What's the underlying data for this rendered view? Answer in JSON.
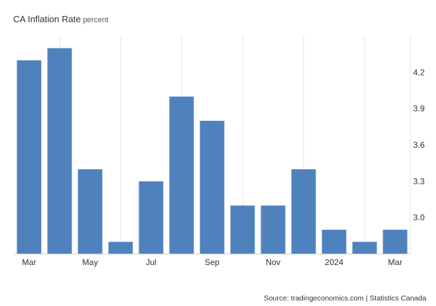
{
  "chart_data": {
    "type": "bar",
    "title": "CA Inflation Rate",
    "unit": "percent",
    "categories": [
      "2023-03",
      "2023-04",
      "2023-05",
      "2023-06",
      "2023-07",
      "2023-08",
      "2023-09",
      "2023-10",
      "2023-11",
      "2023-12",
      "2024-01",
      "2024-02",
      "2024-03"
    ],
    "values": [
      4.3,
      4.4,
      3.4,
      2.8,
      3.3,
      4.0,
      3.8,
      3.1,
      3.1,
      3.4,
      2.9,
      2.8,
      2.9
    ],
    "x_tick_labels": [
      {
        "category": "2023-03",
        "label": "Mar"
      },
      {
        "category": "2023-05",
        "label": "May"
      },
      {
        "category": "2023-07",
        "label": "Jul"
      },
      {
        "category": "2023-09",
        "label": "Sep"
      },
      {
        "category": "2023-11",
        "label": "Nov"
      },
      {
        "category": "2024-01",
        "label": "2024"
      },
      {
        "category": "2024-03",
        "label": "Mar"
      }
    ],
    "y_ticks": [
      3.0,
      3.3,
      3.6,
      3.9,
      4.2
    ],
    "y_tick_labels": [
      "3.0",
      "3.3",
      "3.6",
      "3.9",
      "4.2"
    ],
    "ylim": [
      2.7,
      4.5
    ],
    "xlabel": "",
    "ylabel": "",
    "grid": "vertical",
    "y_axis_side": "right",
    "bar_color": "#4f81bd",
    "source": "Source: tradingeconomics.com | Statistics Canada"
  }
}
